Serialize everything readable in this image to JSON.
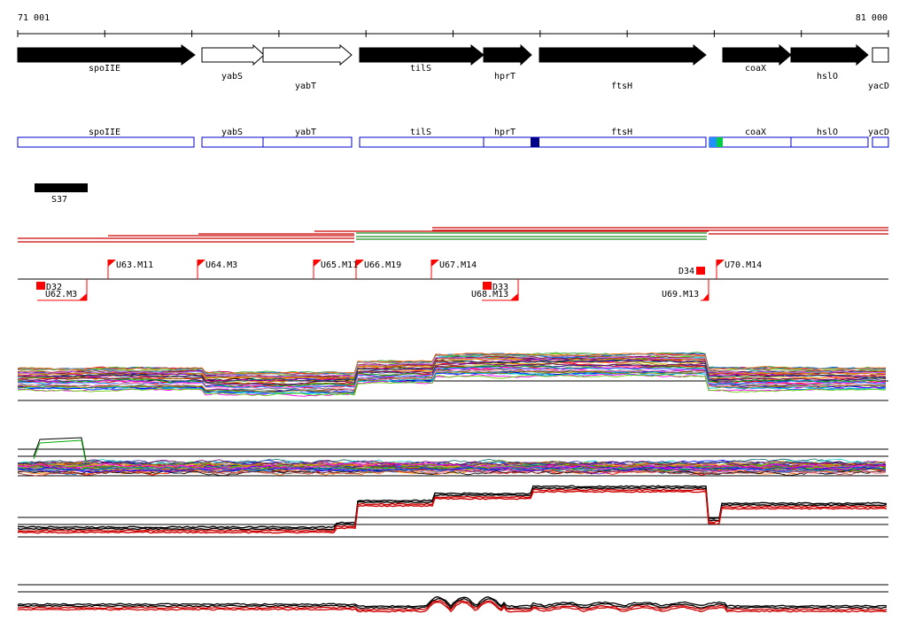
{
  "coords": {
    "start": "71 001",
    "end": "81 000"
  },
  "genes": [
    {
      "name": "spoIIE",
      "strand": "+",
      "fill": "#000000"
    },
    {
      "name": "yabS",
      "strand": "+",
      "fill": "#ffffff"
    },
    {
      "name": "yabT",
      "strand": "+",
      "fill": "#ffffff"
    },
    {
      "name": "tilS",
      "strand": "+",
      "fill": "#000000"
    },
    {
      "name": "hprT",
      "strand": "+",
      "fill": "#000000"
    },
    {
      "name": "ftsH",
      "strand": "+",
      "fill": "#000000"
    },
    {
      "name": "coaX",
      "strand": "+",
      "fill": "#000000"
    },
    {
      "name": "hslO",
      "strand": "+",
      "fill": "#000000"
    },
    {
      "name": "yacD",
      "strand": "+",
      "fill": "#ffffff"
    }
  ],
  "promoter_label": "S37",
  "upshifts": [
    "U63.M11",
    "U64.M3",
    "U65.M11",
    "U66.M19",
    "U67.M14",
    "U70.M14",
    "U62.M3",
    "U68.M13",
    "U69.M13"
  ],
  "downshifts": [
    "D32",
    "D33",
    "D34"
  ],
  "colors": {
    "gene_box_border": "#0000cc",
    "marker": "#ff0000",
    "transcript_red": "#cc0000",
    "transcript_green": "#228b22",
    "dark_blue": "#00008b",
    "light_blue": "#1e90ff",
    "green": "#00cc44"
  }
}
